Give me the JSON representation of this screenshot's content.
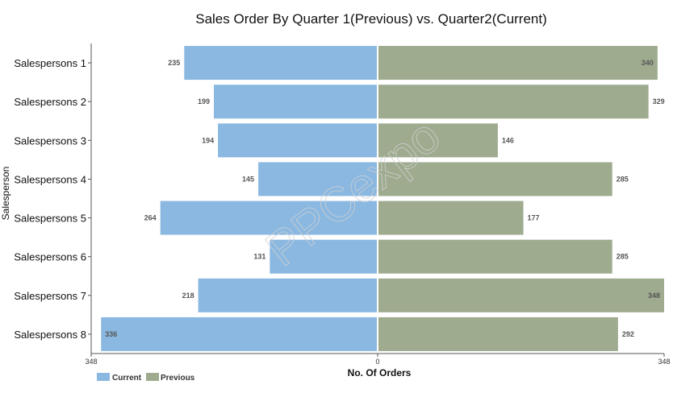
{
  "chart_data": {
    "type": "bar",
    "orientation": "horizontal-diverging",
    "title": "Sales Order By Quarter 1(Previous) vs. Quarter2(Current)",
    "xlabel": "No. Of Orders",
    "ylabel": "Salesperson",
    "categories": [
      "Salespersons 1",
      "Salespersons 2",
      "Salespersons 3",
      "Salespersons 4",
      "Salespersons 5",
      "Salespersons 6",
      "Salespersons 7",
      "Salespersons 8"
    ],
    "series": [
      {
        "name": "Current",
        "side": "left",
        "color": "#8ab8e1",
        "values": [
          235,
          199,
          194,
          145,
          264,
          131,
          218,
          336
        ]
      },
      {
        "name": "Previous",
        "side": "right",
        "color": "#9eab8f",
        "values": [
          340,
          329,
          146,
          285,
          177,
          285,
          348,
          292
        ]
      }
    ],
    "xlim": [
      348,
      0,
      348
    ],
    "xticks": [
      "348",
      "0",
      "348"
    ],
    "grid": false,
    "legend": "bottom-left",
    "watermark": "PPCexpo"
  }
}
